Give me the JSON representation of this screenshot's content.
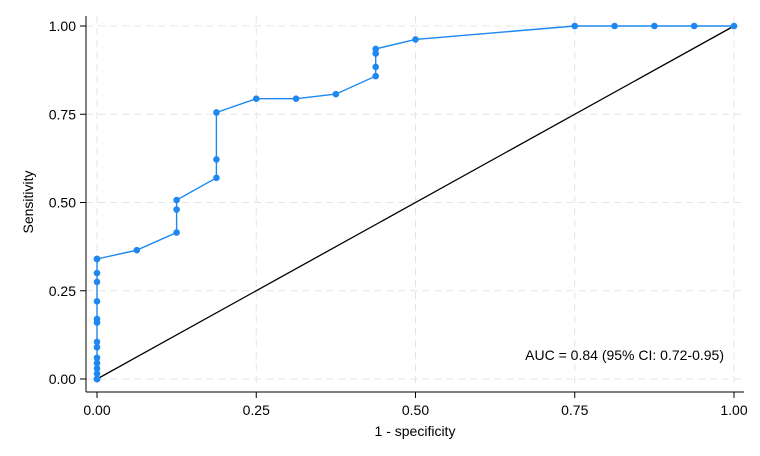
{
  "chart_data": {
    "type": "line",
    "title": "",
    "xlabel": "1 - specificity",
    "ylabel": "Sensitivity",
    "xlim": [
      0,
      1
    ],
    "ylim": [
      0,
      1
    ],
    "xticks": [
      "0.00",
      "0.25",
      "0.50",
      "0.75",
      "1.00"
    ],
    "yticks": [
      "0.00",
      "0.25",
      "0.50",
      "0.75",
      "1.00"
    ],
    "grid": true,
    "annotation": "AUC = 0.84 (95% CI: 0.72-0.95)",
    "colors": {
      "roc": "#1e88f0",
      "reference": "#000000",
      "grid": "#e4e4e4"
    },
    "series": [
      {
        "type": "line-with-markers",
        "x": [
          0,
          0,
          0,
          0,
          0,
          0,
          0,
          0,
          0,
          0,
          0,
          0,
          0,
          0,
          0,
          0,
          0.0625,
          0.125,
          0.125,
          0.125,
          0.1875,
          0.1875,
          0.1875,
          0.25,
          0.3125,
          0.375,
          0.4375,
          0.4375,
          0.4375,
          0.4375,
          0.5,
          0.75,
          0.8125,
          0.875,
          0.9375,
          1
        ],
        "y": [
          0,
          0.015,
          0.03,
          0.045,
          0.06,
          0.09,
          0.105,
          0.16,
          0.17,
          0.22,
          0.275,
          0.3,
          0.34,
          0,
          0,
          0.34,
          0.365,
          0.415,
          0.48,
          0.507,
          0.57,
          0.622,
          0.755,
          0.794,
          0.794,
          0.807,
          0.858,
          0.884,
          0.922,
          0.935,
          0.962,
          1,
          1,
          1,
          1,
          1
        ]
      },
      {
        "type": "reference-line",
        "x": [
          0,
          1
        ],
        "y": [
          0,
          1
        ]
      }
    ]
  }
}
